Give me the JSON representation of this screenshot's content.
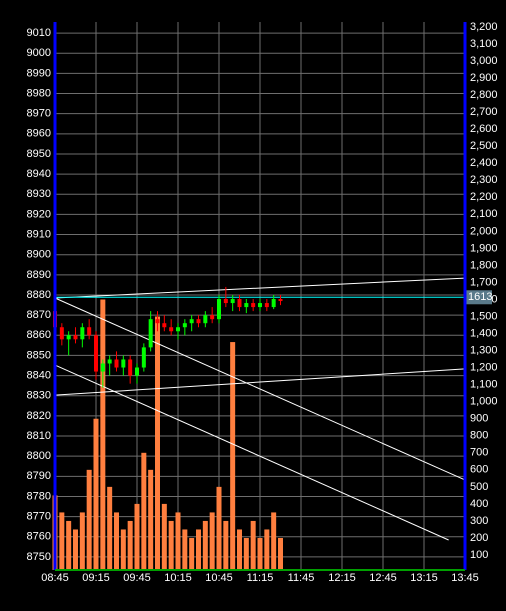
{
  "chart_data": {
    "type": "candlestick",
    "x": [
      "08:45",
      "08:50",
      "08:55",
      "09:00",
      "09:05",
      "09:10",
      "09:15",
      "09:20",
      "09:25",
      "09:30",
      "09:35",
      "09:40",
      "09:45",
      "09:50",
      "09:55",
      "10:00",
      "10:05",
      "10:10",
      "10:15",
      "10:20",
      "10:25",
      "10:30",
      "10:35",
      "10:40",
      "10:45",
      "10:50",
      "10:55",
      "11:00",
      "11:05",
      "11:10",
      "11:15",
      "11:20",
      "11:25",
      "11:30"
    ],
    "open": [
      8872,
      8864,
      8858,
      8860,
      8858,
      8864,
      8860,
      8842,
      8846,
      8848,
      8844,
      8848,
      8840,
      8844,
      8854,
      8868,
      8866,
      8864,
      8862,
      8864,
      8866,
      8868,
      8866,
      8870,
      8868,
      8878,
      8876,
      8878,
      8874,
      8876,
      8874,
      8876,
      8874,
      8878
    ],
    "high": [
      8874,
      8866,
      8862,
      8864,
      8866,
      8868,
      8862,
      8848,
      8850,
      8852,
      8850,
      8850,
      8846,
      8856,
      8872,
      8872,
      8870,
      8868,
      8866,
      8868,
      8870,
      8870,
      8872,
      8874,
      8880,
      8884,
      8880,
      8880,
      8878,
      8878,
      8878,
      8878,
      8880,
      8880
    ],
    "low": [
      8862,
      8855,
      8850,
      8856,
      8854,
      8858,
      8838,
      8834,
      8840,
      8842,
      8840,
      8836,
      8836,
      8842,
      8852,
      8862,
      8862,
      8860,
      8858,
      8860,
      8862,
      8864,
      8864,
      8866,
      8866,
      8874,
      8872,
      8872,
      8871,
      8872,
      8872,
      8872,
      8873,
      8875
    ],
    "close": [
      8864,
      8858,
      8860,
      8858,
      8864,
      8860,
      8842,
      8846,
      8848,
      8844,
      8848,
      8840,
      8844,
      8854,
      8868,
      8866,
      8864,
      8862,
      8864,
      8866,
      8868,
      8866,
      8870,
      8868,
      8878,
      8876,
      8878,
      8874,
      8876,
      8874,
      8876,
      8874,
      8878,
      8877
    ],
    "up_color": "#00ff00",
    "down_color": "#ff0000",
    "volume": {
      "axis": "y2",
      "color": "#ff7f3f",
      "values": [
        450,
        350,
        300,
        250,
        350,
        600,
        900,
        1600,
        500,
        350,
        250,
        300,
        400,
        700,
        600,
        1500,
        400,
        300,
        350,
        250,
        200,
        250,
        300,
        350,
        500,
        300,
        1350,
        250,
        200,
        300,
        200,
        250,
        350,
        200
      ]
    },
    "xlim": [
      "08:45",
      "13:45"
    ],
    "xticks": [
      "08:45",
      "09:15",
      "09:45",
      "10:15",
      "10:45",
      "11:15",
      "11:45",
      "12:15",
      "12:45",
      "13:15",
      "13:45"
    ],
    "ylim": [
      8743.5,
      9015.5
    ],
    "yticks": [
      8750,
      8760,
      8770,
      8780,
      8790,
      8800,
      8810,
      8820,
      8830,
      8840,
      8850,
      8860,
      8870,
      8880,
      8890,
      8900,
      8910,
      8920,
      8930,
      8940,
      8950,
      8960,
      8970,
      8980,
      8990,
      9000,
      9010
    ],
    "y2lim": [
      12,
      3229
    ],
    "y2ticks": [
      100,
      200,
      300,
      400,
      500,
      600,
      700,
      800,
      900,
      {
        "value": 1000,
        "label": "1,000"
      },
      {
        "value": 1100,
        "label": "1,100"
      },
      {
        "value": 1200,
        "label": "1,200"
      },
      {
        "value": 1300,
        "label": "1,300"
      },
      {
        "value": 1400,
        "label": "1,400"
      },
      {
        "value": 1500,
        "label": "1,500"
      },
      {
        "value": 1600,
        "label": "1,600"
      },
      {
        "value": 1700,
        "label": "1,700"
      },
      {
        "value": 1800,
        "label": "1,800"
      },
      {
        "value": 1900,
        "label": "1,900"
      },
      {
        "value": 2000,
        "label": "2,000"
      },
      {
        "value": 2100,
        "label": "2,100"
      },
      {
        "value": 2200,
        "label": "2,200"
      },
      {
        "value": 2300,
        "label": "2,300"
      },
      {
        "value": 2400,
        "label": "2,400"
      },
      {
        "value": 2500,
        "label": "2,500"
      },
      {
        "value": 2600,
        "label": "2,600"
      },
      {
        "value": 2700,
        "label": "2,700"
      },
      {
        "value": 2800,
        "label": "2,800"
      },
      {
        "value": 2900,
        "label": "2,900"
      },
      {
        "value": 3000,
        "label": "3,000"
      },
      {
        "value": 3100,
        "label": "3,100"
      },
      {
        "value": 3200,
        "label": "3,200"
      }
    ],
    "grid": true,
    "trendlines": [
      {
        "x": [
          "08:45",
          "13:45"
        ],
        "y": [
          8878.5,
          8888.4
        ]
      },
      {
        "x": [
          "08:45",
          "13:45"
        ],
        "y": [
          8830.3,
          8843.3
        ]
      },
      {
        "x": [
          "08:45",
          "13:45"
        ],
        "y": [
          8878.5,
          8788.2
        ]
      },
      {
        "x": [
          "08:45",
          "13:33"
        ],
        "y": [
          8845.2,
          8758.4
        ]
      }
    ],
    "price_line": {
      "axis": "y2",
      "value": 1613,
      "label": "1613",
      "color": "#00ffff"
    }
  }
}
